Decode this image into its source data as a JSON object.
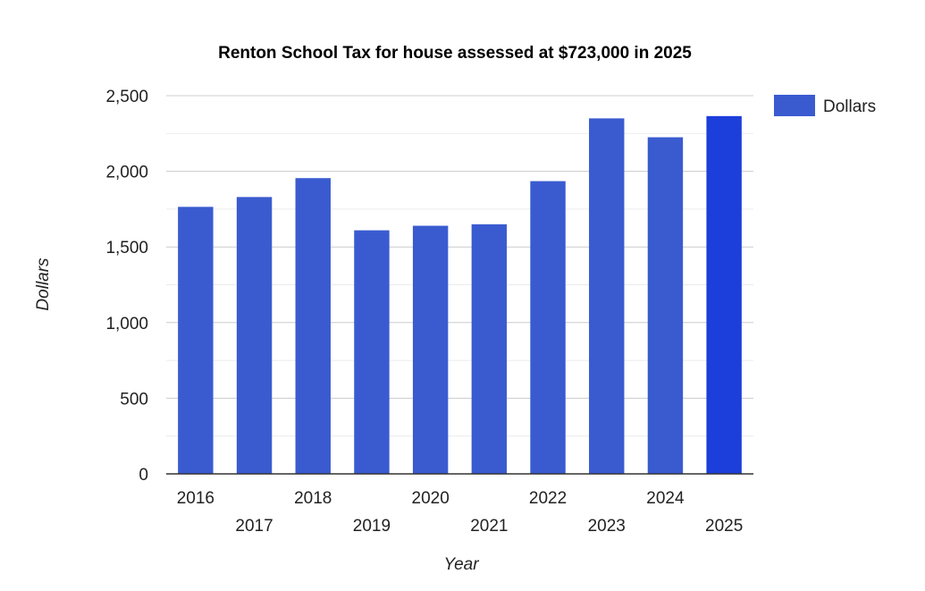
{
  "chart_data": {
    "type": "bar",
    "title": "Renton School Tax for house assessed at $723,000 in 2025",
    "xlabel": "Year",
    "ylabel": "Dollars",
    "categories": [
      "2016",
      "2017",
      "2018",
      "2019",
      "2020",
      "2021",
      "2022",
      "2023",
      "2024",
      "2025"
    ],
    "series": [
      {
        "name": "Dollars",
        "values": [
          1765,
          1830,
          1955,
          1610,
          1640,
          1650,
          1935,
          2350,
          2225,
          2365
        ],
        "color": "#3a5bd0"
      }
    ],
    "highlight": {
      "category": "2025",
      "color": "#1c3fdb"
    },
    "ylim": [
      0,
      2500
    ],
    "yticks": [
      0,
      500,
      1000,
      1500,
      2000,
      2500
    ],
    "ytick_labels": [
      "0",
      "500",
      "1,000",
      "1,500",
      "2,000",
      "2,500"
    ],
    "grid": true,
    "legend_position": "right",
    "colors": {
      "gridline": "#cccccc",
      "minor_gridline": "#ebebeb",
      "axis": "#333333"
    }
  }
}
